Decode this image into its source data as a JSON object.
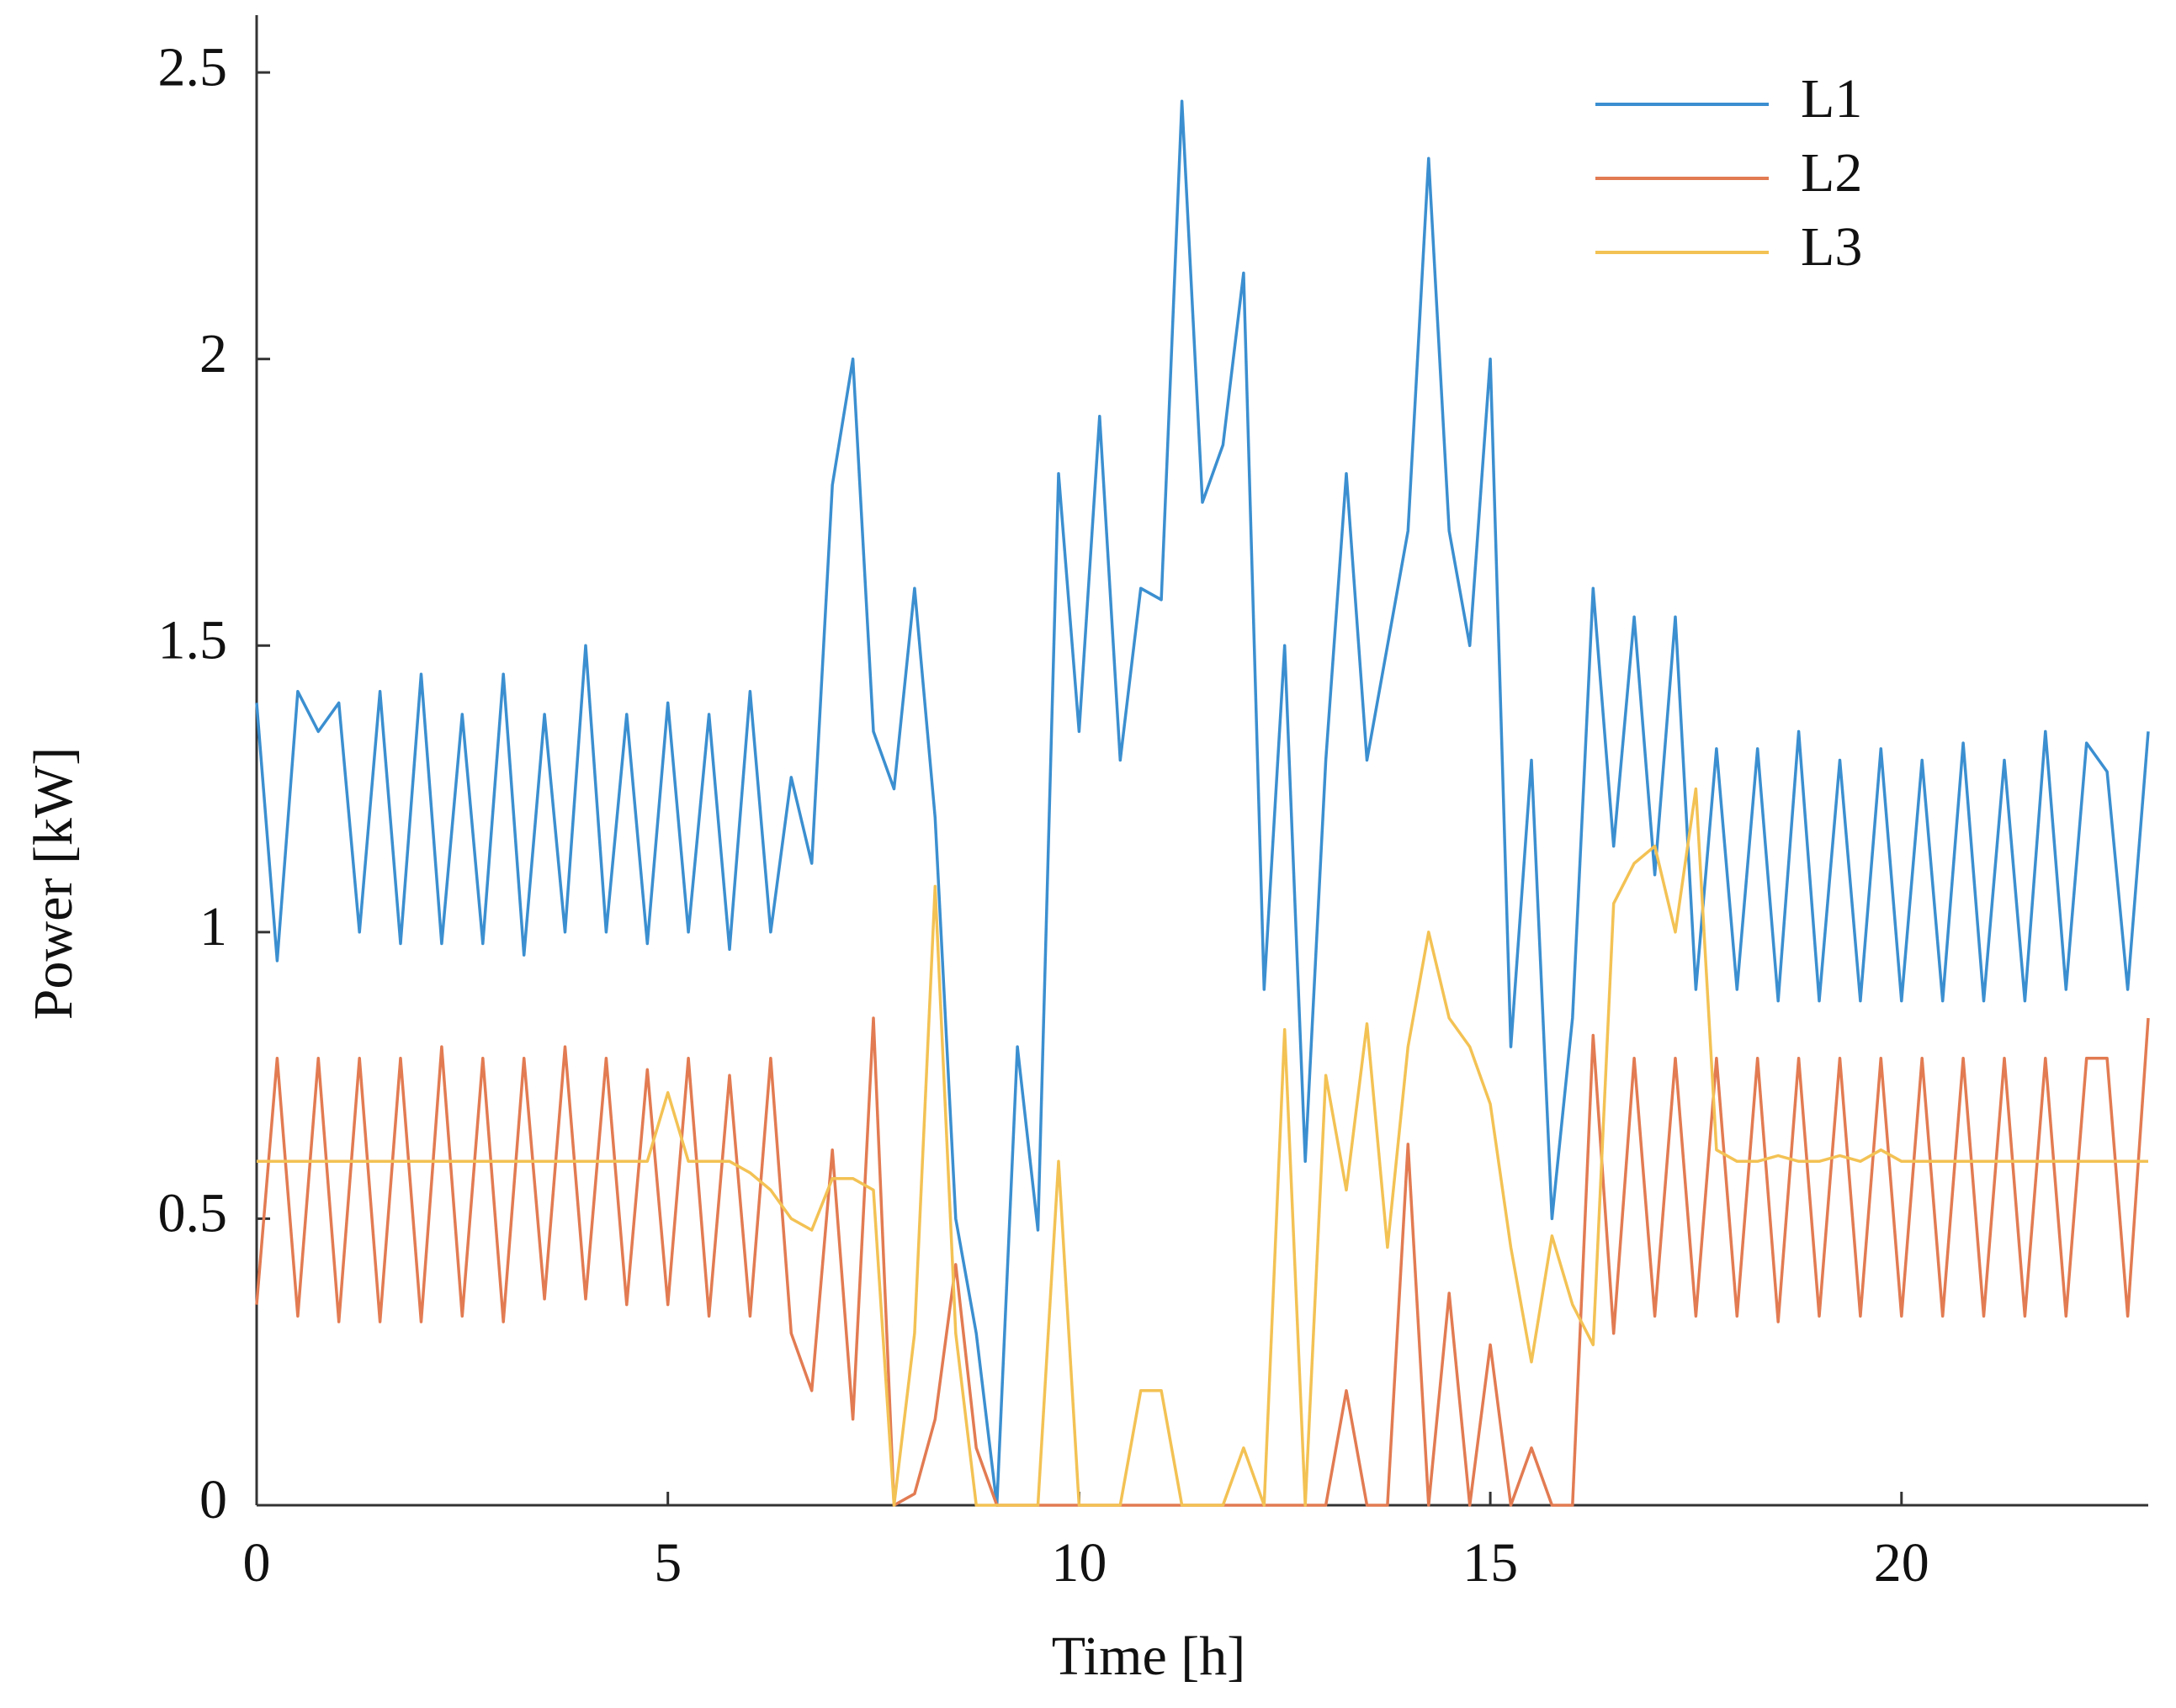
{
  "chart_data": {
    "type": "line",
    "xlabel": "Time [h]",
    "ylabel": "Power [kW]",
    "x": [
      0,
      0.25,
      0.5,
      0.75,
      1,
      1.25,
      1.5,
      1.75,
      2,
      2.25,
      2.5,
      2.75,
      3,
      3.25,
      3.5,
      3.75,
      4,
      4.25,
      4.5,
      4.75,
      5,
      5.25,
      5.5,
      5.75,
      6,
      6.25,
      6.5,
      6.75,
      7,
      7.25,
      7.5,
      7.75,
      8,
      8.25,
      8.5,
      8.75,
      9,
      9.25,
      9.5,
      9.75,
      10,
      10.25,
      10.5,
      10.75,
      11,
      11.25,
      11.5,
      11.75,
      12,
      12.25,
      12.5,
      12.75,
      13,
      13.25,
      13.5,
      13.75,
      14,
      14.25,
      14.5,
      14.75,
      15,
      15.25,
      15.5,
      15.75,
      16,
      16.25,
      16.5,
      16.75,
      17,
      17.25,
      17.5,
      17.75,
      18,
      18.25,
      18.5,
      18.75,
      19,
      19.25,
      19.5,
      19.75,
      20,
      20.25,
      20.5,
      20.75,
      21,
      21.25,
      21.5,
      21.75,
      22,
      22.25,
      22.5,
      22.75,
      23
    ],
    "series": [
      {
        "name": "L1",
        "color": "#3b8fd0",
        "values": [
          1.4,
          0.95,
          1.42,
          1.35,
          1.4,
          1.0,
          1.42,
          0.98,
          1.45,
          0.98,
          1.38,
          0.98,
          1.45,
          0.96,
          1.38,
          1.0,
          1.5,
          1.0,
          1.38,
          0.98,
          1.4,
          1.0,
          1.38,
          0.97,
          1.42,
          1.0,
          1.27,
          1.12,
          1.78,
          2.0,
          1.35,
          1.25,
          1.6,
          1.2,
          0.5,
          0.3,
          0.0,
          0.8,
          0.48,
          1.8,
          1.35,
          1.9,
          1.3,
          1.6,
          1.58,
          2.45,
          1.75,
          1.85,
          2.15,
          0.9,
          1.5,
          0.6,
          1.3,
          1.8,
          1.3,
          1.5,
          1.7,
          2.35,
          1.7,
          1.5,
          2.0,
          0.8,
          1.3,
          0.5,
          0.85,
          1.6,
          1.15,
          1.55,
          1.1,
          1.55,
          0.9,
          1.32,
          0.9,
          1.32,
          0.88,
          1.35,
          0.88,
          1.3,
          0.88,
          1.32,
          0.88,
          1.3,
          0.88,
          1.33,
          0.88,
          1.3,
          0.88,
          1.35,
          0.9,
          1.33,
          1.28,
          0.9,
          1.35
        ]
      },
      {
        "name": "L2",
        "color": "#e27b52",
        "values": [
          0.35,
          0.78,
          0.33,
          0.78,
          0.32,
          0.78,
          0.32,
          0.78,
          0.32,
          0.8,
          0.33,
          0.78,
          0.32,
          0.78,
          0.36,
          0.8,
          0.36,
          0.78,
          0.35,
          0.76,
          0.35,
          0.78,
          0.33,
          0.75,
          0.33,
          0.78,
          0.3,
          0.2,
          0.62,
          0.15,
          0.85,
          0,
          0.02,
          0.15,
          0.42,
          0.1,
          0,
          0,
          0,
          0,
          0,
          0,
          0,
          0,
          0,
          0,
          0,
          0,
          0,
          0,
          0,
          0,
          0,
          0.2,
          0,
          0,
          0.63,
          0,
          0.37,
          0,
          0.28,
          0,
          0.1,
          0,
          0,
          0.82,
          0.3,
          0.78,
          0.33,
          0.78,
          0.33,
          0.78,
          0.33,
          0.78,
          0.32,
          0.78,
          0.33,
          0.78,
          0.33,
          0.78,
          0.33,
          0.78,
          0.33,
          0.78,
          0.33,
          0.78,
          0.33,
          0.78,
          0.33,
          0.78,
          0.78,
          0.33,
          0.85
        ]
      },
      {
        "name": "L3",
        "color": "#f3c254",
        "values": [
          0.6,
          0.6,
          0.6,
          0.6,
          0.6,
          0.6,
          0.6,
          0.6,
          0.6,
          0.6,
          0.6,
          0.6,
          0.6,
          0.6,
          0.6,
          0.6,
          0.6,
          0.6,
          0.6,
          0.6,
          0.72,
          0.6,
          0.6,
          0.6,
          0.58,
          0.55,
          0.5,
          0.48,
          0.57,
          0.57,
          0.55,
          0,
          0.3,
          1.08,
          0.3,
          0,
          0,
          0,
          0,
          0.6,
          0,
          0,
          0,
          0.2,
          0.2,
          0,
          0,
          0,
          0.1,
          0,
          0.83,
          0,
          0.75,
          0.55,
          0.84,
          0.45,
          0.8,
          1.0,
          0.85,
          0.8,
          0.7,
          0.45,
          0.25,
          0.47,
          0.35,
          0.28,
          1.05,
          1.12,
          1.15,
          1.0,
          1.25,
          0.62,
          0.6,
          0.6,
          0.61,
          0.6,
          0.6,
          0.61,
          0.6,
          0.62,
          0.6,
          0.6,
          0.6,
          0.6,
          0.6,
          0.6,
          0.6,
          0.6,
          0.6,
          0.6,
          0.6,
          0.6,
          0.6
        ]
      }
    ],
    "xlim": [
      0,
      23
    ],
    "xticks": [
      0,
      5,
      10,
      15,
      20
    ],
    "ylim": [
      0,
      2.6
    ],
    "yticks": [
      0,
      0.5,
      1,
      1.5,
      2,
      2.5
    ],
    "grid": false,
    "legend": "upper right"
  }
}
